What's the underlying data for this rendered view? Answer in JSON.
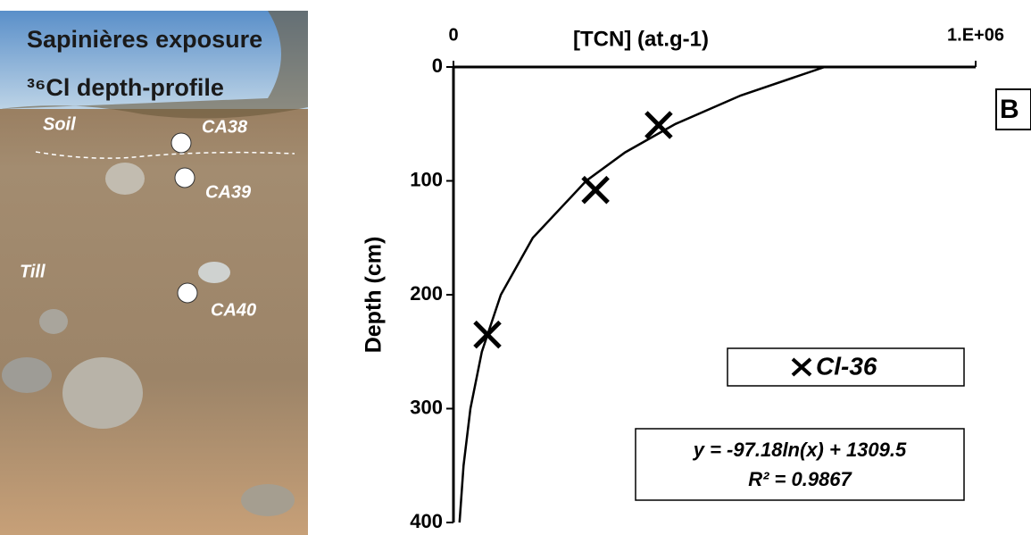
{
  "photo": {
    "title": "Sapinières exposure",
    "subtitle": "³⁶Cl depth-profile",
    "layers": [
      "Soil",
      "Till"
    ],
    "samples": [
      "CA38",
      "CA39",
      "CA40"
    ]
  },
  "chart_data": {
    "type": "scatter",
    "panel": "B",
    "xlabel": "[TCN] (at.g-1)",
    "ylabel": "Depth (cm)",
    "xlim": [
      0,
      1000000
    ],
    "xticks": [
      0,
      {
        "value": 1000000,
        "label": "1.E+06"
      }
    ],
    "ylim": [
      0,
      400
    ],
    "yticks": [
      0,
      100,
      200,
      300,
      400
    ],
    "y_inverted": true,
    "x_axis_top": true,
    "series": [
      {
        "name": "Cl-36",
        "color": "#000000",
        "x": [
          393000,
          272000,
          65000
        ],
        "values": [
          51,
          108,
          235
        ]
      }
    ],
    "fit": {
      "x": [
        711000,
        550200,
        425070,
        328700,
        254250,
        151900,
        90850,
        54280,
        32470,
        19400,
        11600
      ],
      "values": [
        0,
        25,
        50,
        75,
        100,
        150,
        200,
        250,
        300,
        350,
        400
      ],
      "equation": "y = -97.18ln(x) + 1309.5",
      "r2": "R² = 0.9867"
    }
  }
}
